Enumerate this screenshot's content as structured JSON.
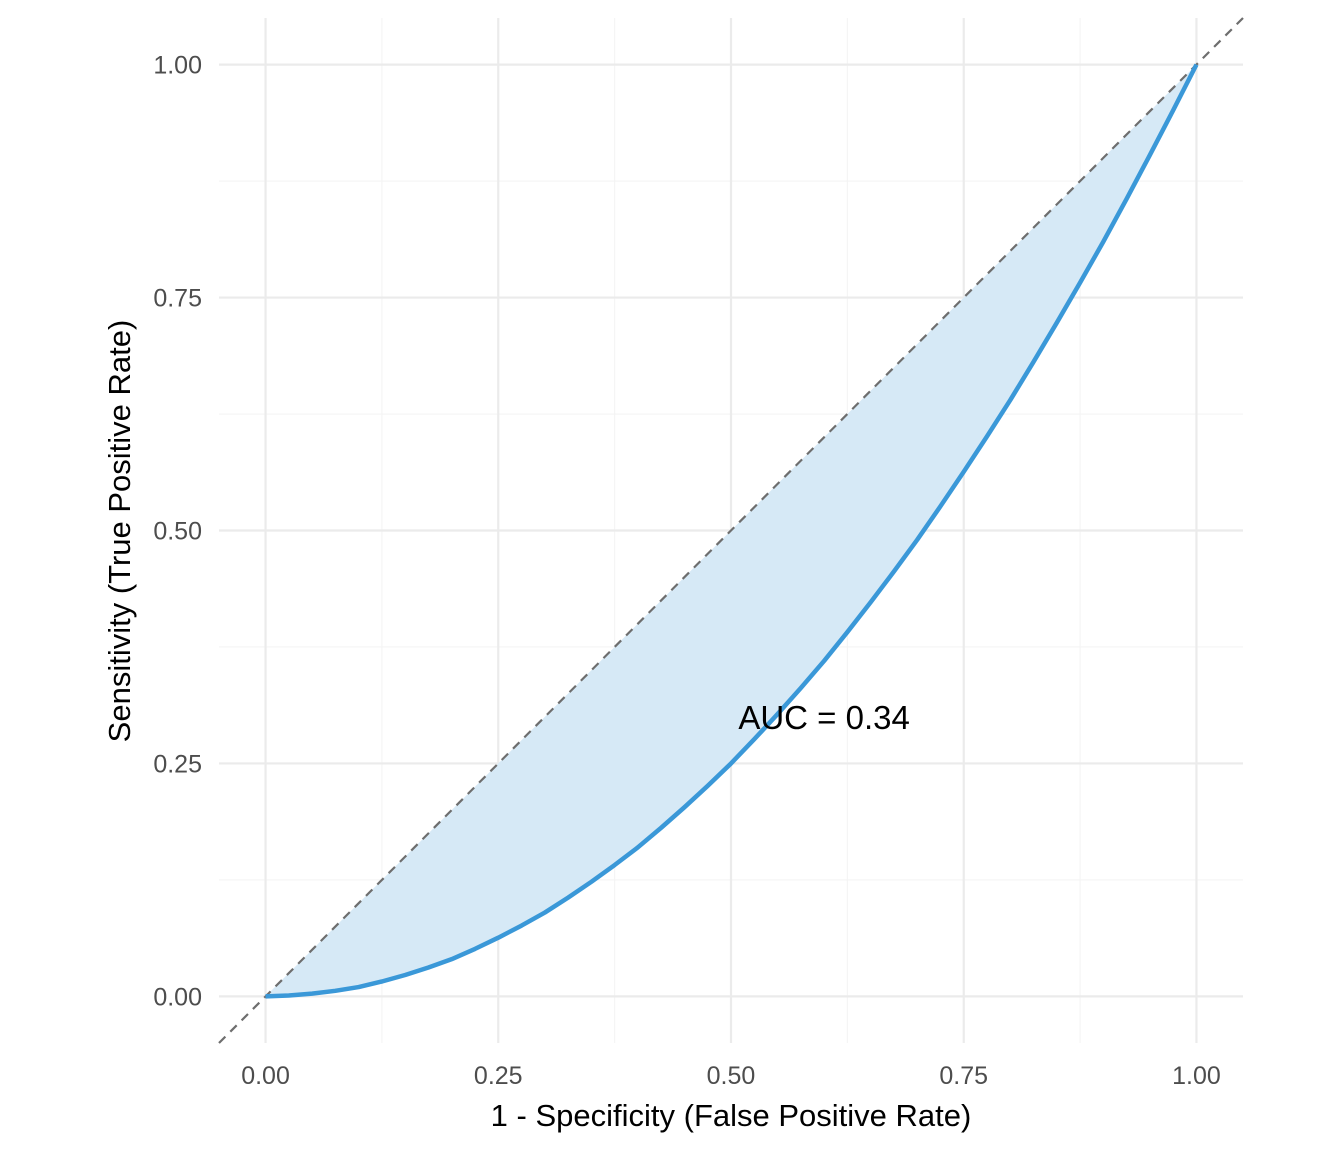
{
  "chart_data": {
    "type": "line",
    "title": "",
    "xlabel": "1 - Specificity (False Positive Rate)",
    "ylabel": "Sensitivity (True Positive Rate)",
    "xlim": [
      -0.05,
      1.05
    ],
    "ylim": [
      -0.05,
      1.05
    ],
    "x_ticks": [
      "0.00",
      "0.25",
      "0.50",
      "0.75",
      "1.00"
    ],
    "y_ticks": [
      "0.00",
      "0.25",
      "0.50",
      "0.75",
      "1.00"
    ],
    "grid": true,
    "series": [
      {
        "x": [
          0.0,
          0.025,
          0.05,
          0.075,
          0.1,
          0.125,
          0.15,
          0.175,
          0.2,
          0.225,
          0.25,
          0.275,
          0.3,
          0.325,
          0.35,
          0.375,
          0.4,
          0.425,
          0.45,
          0.475,
          0.5,
          0.525,
          0.55,
          0.575,
          0.6,
          0.625,
          0.65,
          0.675,
          0.7,
          0.725,
          0.75,
          0.775,
          0.8,
          0.825,
          0.85,
          0.875,
          0.9,
          0.925,
          0.95,
          0.975,
          1.0
        ],
        "y": [
          0.0,
          0.001,
          0.003,
          0.006,
          0.01,
          0.016,
          0.023,
          0.031,
          0.04,
          0.051,
          0.063,
          0.076,
          0.09,
          0.106,
          0.123,
          0.141,
          0.16,
          0.181,
          0.203,
          0.226,
          0.25,
          0.276,
          0.303,
          0.331,
          0.36,
          0.391,
          0.423,
          0.456,
          0.49,
          0.526,
          0.563,
          0.601,
          0.64,
          0.681,
          0.723,
          0.766,
          0.81,
          0.856,
          0.903,
          0.951,
          1.0
        ]
      }
    ],
    "reference_line": {
      "x": [
        -0.05,
        1.05
      ],
      "y": [
        -0.05,
        1.05
      ]
    },
    "annotation": {
      "text": "AUC = 0.34",
      "x": 0.6,
      "y": 0.3
    },
    "colors": {
      "curve": "#3a98d8",
      "fill": "#d6e9f6",
      "reference": "#6e6e6e"
    }
  }
}
